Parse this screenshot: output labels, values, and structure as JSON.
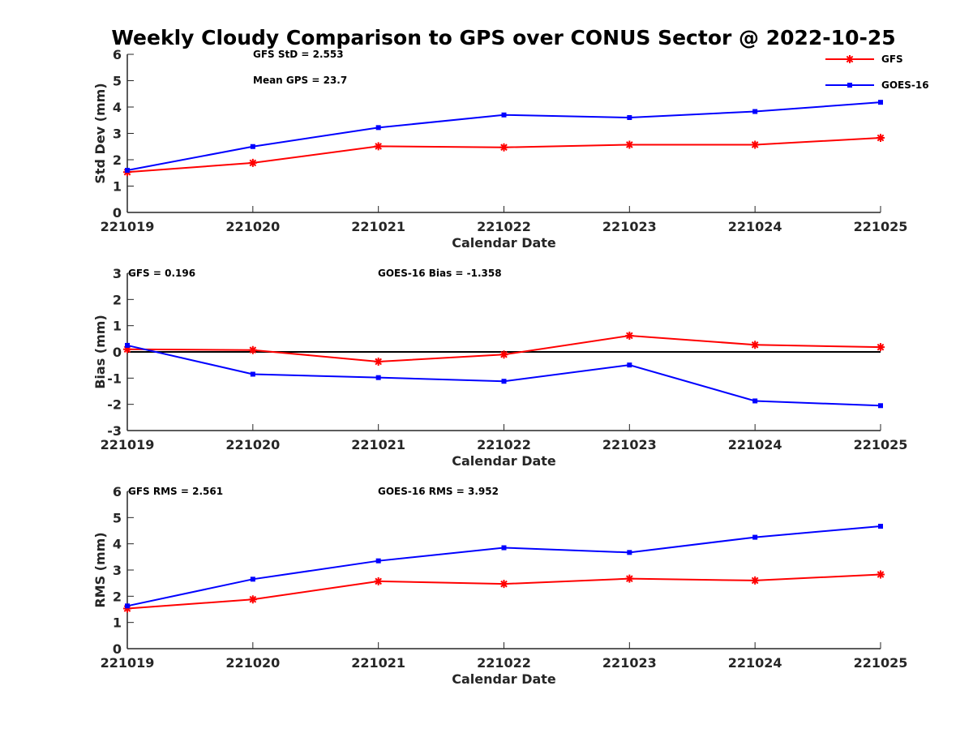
{
  "title": "Weekly Cloudy Comparison to GPS over CONUS Sector @ 2022-10-25",
  "legend": {
    "placement": "top-right",
    "entries": [
      {
        "name": "GFS",
        "color": "#ff0000",
        "marker": "asterisk"
      },
      {
        "name": "GOES-16",
        "color": "#0000ff",
        "marker": "square"
      }
    ]
  },
  "chart_data": [
    {
      "type": "line",
      "ylabel": "Std Dev (mm)",
      "xlabel": "Calendar Date",
      "categories": [
        "221019",
        "221020",
        "221021",
        "221022",
        "221023",
        "221024",
        "221025"
      ],
      "ylim": [
        0,
        6
      ],
      "yticks": [
        "0",
        "1",
        "2",
        "3",
        "4",
        "5",
        "6"
      ],
      "zero_line": false,
      "annotations": [
        "GFS StD = 2.553",
        "Mean GPS = 23.7"
      ],
      "series": [
        {
          "name": "GFS",
          "color": "#ff0000",
          "marker": "asterisk",
          "values": [
            1.53,
            1.88,
            2.51,
            2.47,
            2.57,
            2.57,
            2.83
          ]
        },
        {
          "name": "GOES-16",
          "color": "#0000ff",
          "marker": "square",
          "values": [
            1.6,
            2.5,
            3.22,
            3.7,
            3.6,
            3.83,
            4.18
          ]
        }
      ]
    },
    {
      "type": "line",
      "ylabel": "Bias (mm)",
      "xlabel": "Calendar Date",
      "categories": [
        "221019",
        "221020",
        "221021",
        "221022",
        "221023",
        "221024",
        "221025"
      ],
      "ylim": [
        -3,
        3
      ],
      "yticks": [
        "-3",
        "-2",
        "-1",
        "0",
        "1",
        "2",
        "3"
      ],
      "zero_line": true,
      "annotations": [
        "GFS = 0.196",
        "GOES-16 Bias  = -1.358"
      ],
      "series": [
        {
          "name": "GFS",
          "color": "#ff0000",
          "marker": "asterisk",
          "values": [
            0.1,
            0.07,
            -0.37,
            -0.1,
            0.62,
            0.27,
            0.18
          ]
        },
        {
          "name": "GOES-16",
          "color": "#0000ff",
          "marker": "square",
          "values": [
            0.25,
            -0.85,
            -0.98,
            -1.12,
            -0.5,
            -1.87,
            -2.05
          ]
        }
      ]
    },
    {
      "type": "line",
      "ylabel": "RMS (mm)",
      "xlabel": "Calendar Date",
      "categories": [
        "221019",
        "221020",
        "221021",
        "221022",
        "221023",
        "221024",
        "221025"
      ],
      "ylim": [
        0,
        6
      ],
      "yticks": [
        "0",
        "1",
        "2",
        "3",
        "4",
        "5",
        "6"
      ],
      "zero_line": false,
      "annotations": [
        "GFS RMS = 2.561",
        "GOES-16 RMS = 3.952"
      ],
      "series": [
        {
          "name": "GFS",
          "color": "#ff0000",
          "marker": "asterisk",
          "values": [
            1.53,
            1.88,
            2.57,
            2.47,
            2.67,
            2.6,
            2.83
          ]
        },
        {
          "name": "GOES-16",
          "color": "#0000ff",
          "marker": "square",
          "values": [
            1.63,
            2.65,
            3.35,
            3.85,
            3.67,
            4.25,
            4.67
          ]
        }
      ]
    }
  ]
}
